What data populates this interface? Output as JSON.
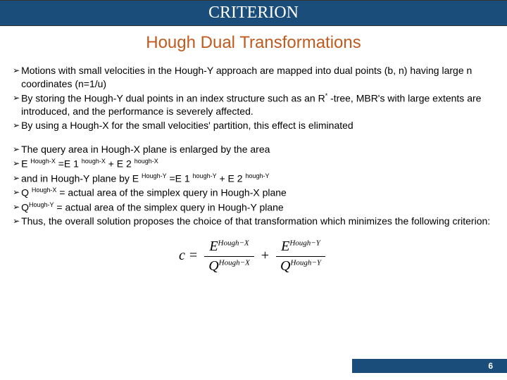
{
  "title": "CRITERION",
  "subtitle": "Hough  Dual Transformations",
  "block1": {
    "b1": "Motions with small velocities in the Hough-Y approach are mapped into dual points (b, n) having large n coordinates (n=1/u)",
    "b2a": "By storing the Hough-Y dual points in an index structure such as an R",
    "b2sup": "*",
    "b2b": " -tree, MBR's with large extents are introduced, and the performance is severely affected.",
    "b3": "By using a Hough-X for the small velocities' partition, this effect is eliminated"
  },
  "block2": {
    "b4": " The query area in Hough-X plane is enlarged by the area",
    "b5a": "E ",
    "b5s1": "Hough-X",
    "b5b": "  =E 1 ",
    "b5s2": "hough-X",
    "b5c": " + E 2 ",
    "b5s3": "hough-X",
    "b6a": "and in Hough-Y plane by E ",
    "b6s1": "Hough-Y",
    "b6b": "  =E 1 ",
    "b6s2": "hough-Y",
    "b6c": " + E 2 ",
    "b6s3": "hough-Y",
    "b7a": "Q ",
    "b7s1": "Hough-X",
    "b7b": " = actual area of the simplex query in Hough-X plane",
    "b8a": "Q",
    "b8s1": "Hough-Y",
    "b8b": " = actual area of the simplex query in Hough-Y plane",
    "b9": "Thus, the overall solution  proposes the choice of that transformation which minimizes the following criterion:"
  },
  "formula": {
    "c": "c",
    "E": "E",
    "Q": "Q",
    "hx": "Hough−X",
    "hy": "Hough−Y"
  },
  "page": "6",
  "colors": {
    "bar": "#1a4d7a",
    "subtitle": "#c05a1e"
  }
}
